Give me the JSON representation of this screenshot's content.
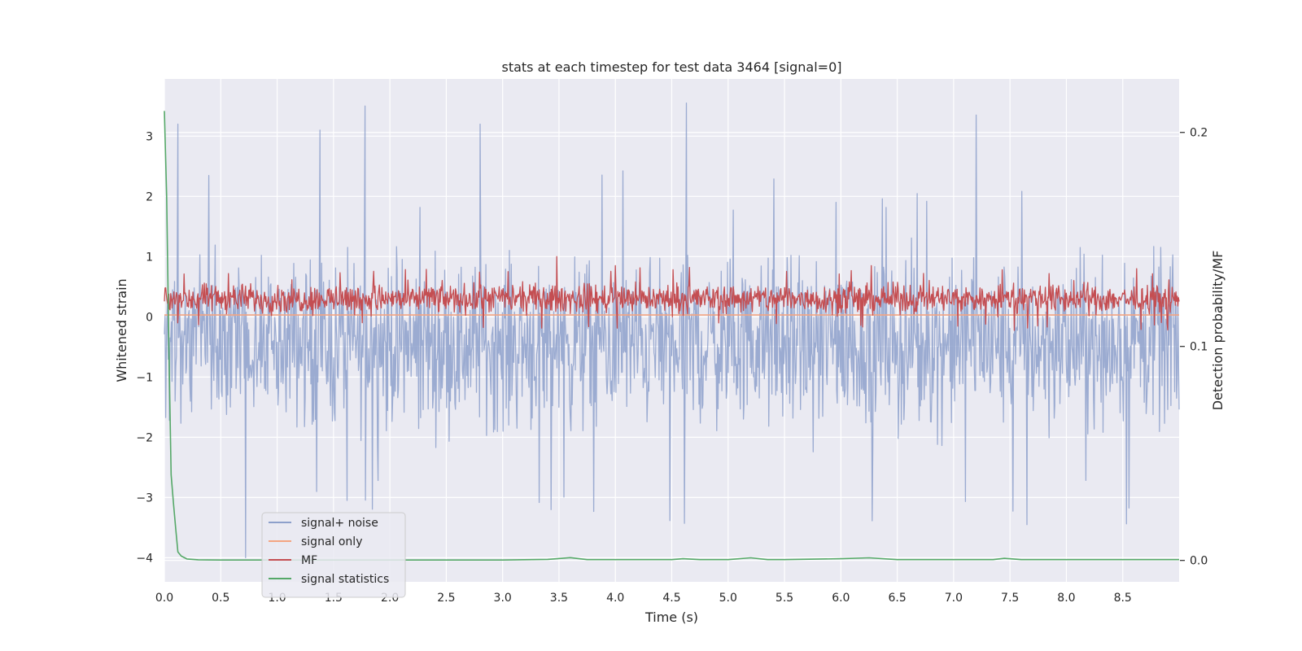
{
  "chart_data": {
    "type": "line",
    "title": "stats at each timestep for test data 3464 [signal=0]",
    "xlabel": "Time (s)",
    "ylabel": "Whitened strain",
    "y2label": "Detection probability/MF",
    "xlim": [
      0,
      9.0
    ],
    "ylim": [
      -4.4,
      3.95
    ],
    "y2lim": [
      -0.01,
      0.225
    ],
    "xticks": [
      "0.0",
      "0.5",
      "1.0",
      "1.5",
      "2.0",
      "2.5",
      "3.0",
      "3.5",
      "4.0",
      "4.5",
      "5.0",
      "5.5",
      "6.0",
      "6.5",
      "7.0",
      "7.5",
      "8.0",
      "8.5"
    ],
    "yticks": [
      "−4",
      "−3",
      "−2",
      "−1",
      "0",
      "1",
      "2",
      "3"
    ],
    "y2ticks": [
      "0.0",
      "0.1",
      "0.2"
    ],
    "grid": true,
    "legend_position": "lower-left",
    "series": [
      {
        "name": "signal+ noise",
        "color": "#8da0cb",
        "axis": "left",
        "kind": "noise",
        "mean": -0.45,
        "typical_range": [
          -2.0,
          2.0
        ],
        "peaks": [
          [
            0.12,
            3.2
          ],
          [
            0.72,
            -4.0
          ],
          [
            1.38,
            3.1
          ],
          [
            1.78,
            3.5
          ],
          [
            2.8,
            3.2
          ],
          [
            3.43,
            -3.2
          ],
          [
            4.63,
            3.55
          ],
          [
            7.2,
            3.35
          ],
          [
            7.65,
            -3.45
          ]
        ]
      },
      {
        "name": "signal only",
        "color": "#f4a582",
        "axis": "left",
        "kind": "flat",
        "value": 0.03
      },
      {
        "name": "MF",
        "color": "#c44e52",
        "axis": "left",
        "kind": "noise",
        "mean": 0.3,
        "typical_range": [
          0.0,
          0.7
        ],
        "peaks": [
          [
            3.48,
            1.0
          ],
          [
            4.0,
            0.85
          ],
          [
            6.27,
            0.85
          ]
        ]
      },
      {
        "name": "signal statistics",
        "color": "#55a868",
        "axis": "right",
        "kind": "line",
        "x": [
          0.0,
          0.02,
          0.04,
          0.06,
          0.08,
          0.1,
          0.12,
          0.15,
          0.2,
          0.3,
          0.5,
          1.0,
          2.0,
          3.0,
          3.4,
          3.6,
          3.75,
          4.5,
          4.6,
          4.75,
          5.0,
          5.2,
          5.35,
          5.5,
          6.0,
          6.25,
          6.5,
          7.0,
          7.35,
          7.45,
          7.6,
          9.0
        ],
        "y": [
          0.21,
          0.17,
          0.1,
          0.04,
          0.027,
          0.015,
          0.004,
          0.002,
          0.0007,
          0.0003,
          0.0002,
          0.0002,
          0.0002,
          0.0002,
          0.0005,
          0.0013,
          0.0004,
          0.0004,
          0.0008,
          0.0004,
          0.0004,
          0.0012,
          0.0004,
          0.0004,
          0.0008,
          0.0012,
          0.0004,
          0.0004,
          0.0004,
          0.001,
          0.0004,
          0.0004
        ]
      }
    ]
  }
}
